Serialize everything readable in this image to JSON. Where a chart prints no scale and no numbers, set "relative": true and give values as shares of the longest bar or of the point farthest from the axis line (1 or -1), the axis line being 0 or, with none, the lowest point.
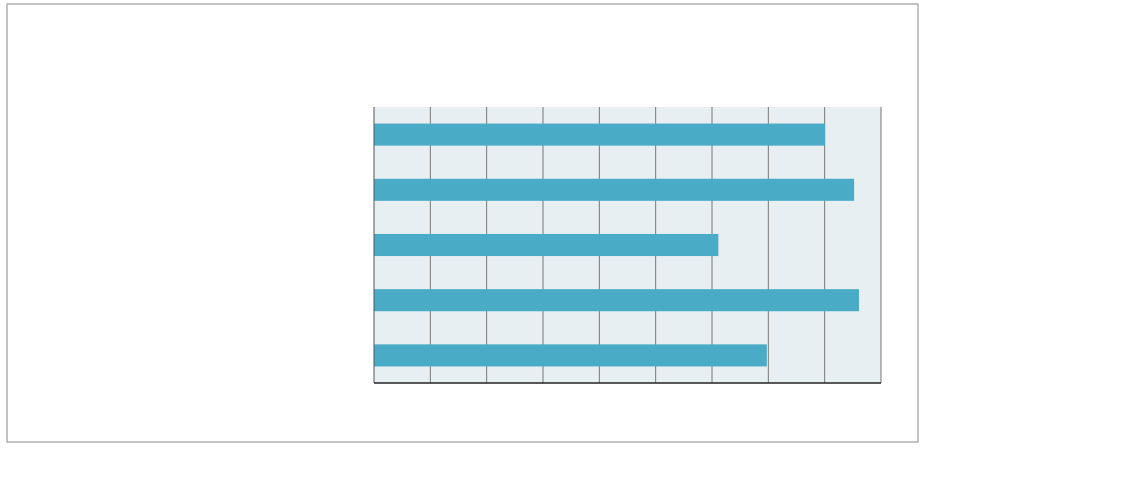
{
  "chart_data": {
    "type": "bar",
    "orientation": "horizontal",
    "relative": true,
    "grid": "x",
    "categories": [
      null,
      null,
      null,
      null,
      null
    ],
    "color": "#4aabc7",
    "values": [
      0.93,
      0.99,
      0.71,
      1,
      0.81
    ]
  }
}
